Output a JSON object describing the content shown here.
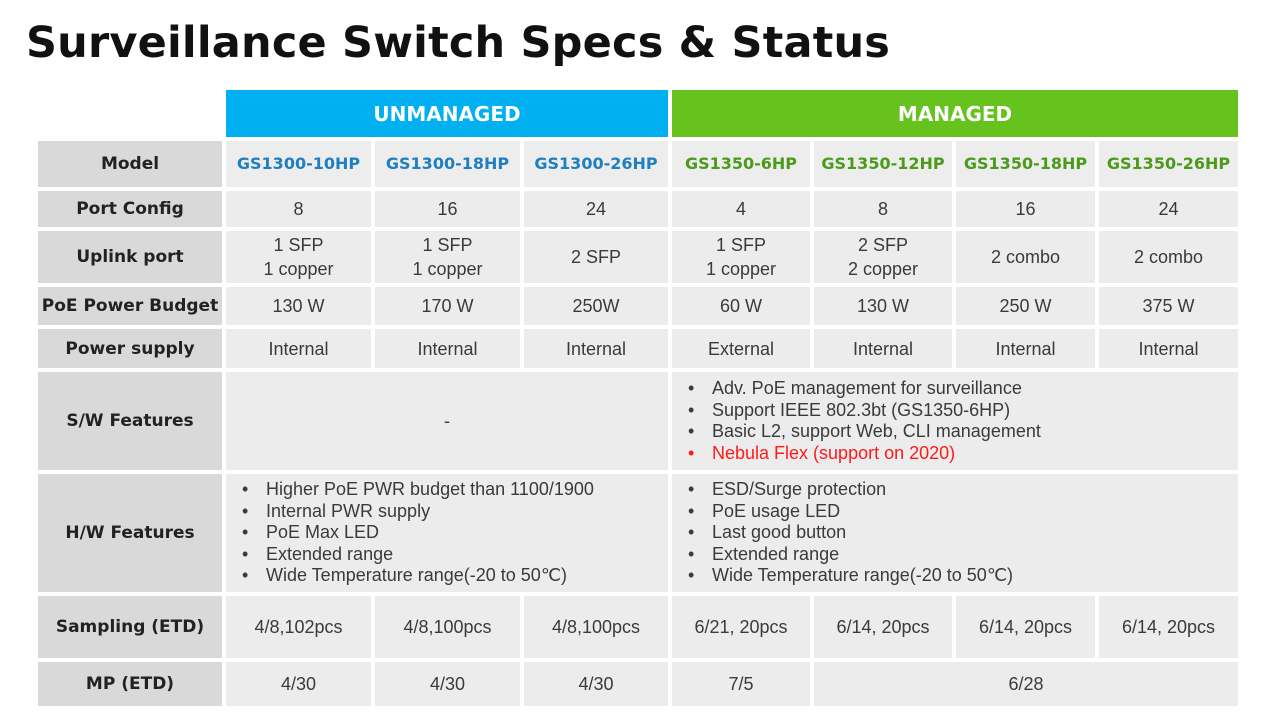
{
  "title": "Surveillance Switch Specs & Status",
  "groups": {
    "unmanaged": "UNMANAGED",
    "managed": "MANAGED"
  },
  "colors": {
    "unmanaged": "#00b0f0",
    "managed": "#66c31d",
    "highlight": "#ff1a1a"
  },
  "row_labels": {
    "model": "Model",
    "port_config": "Port Config",
    "uplink": "Uplink port",
    "poe_budget": "PoE Power Budget",
    "power_supply": "Power supply",
    "sw_features": "S/W Features",
    "hw_features": "H/W Features",
    "sampling": "Sampling (ETD)",
    "mp": "MP (ETD)"
  },
  "models": [
    "GS1300-10HP",
    "GS1300-18HP",
    "GS1300-26HP",
    "GS1350-6HP",
    "GS1350-12HP",
    "GS1350-18HP",
    "GS1350-26HP"
  ],
  "port_config": [
    "8",
    "16",
    "24",
    "4",
    "8",
    "16",
    "24"
  ],
  "uplink": [
    [
      "1 SFP",
      "1 copper"
    ],
    [
      "1 SFP",
      "1 copper"
    ],
    [
      "2 SFP"
    ],
    [
      "1 SFP",
      "1 copper"
    ],
    [
      "2 SFP",
      "2 copper"
    ],
    [
      "2 combo"
    ],
    [
      "2 combo"
    ]
  ],
  "poe_budget": [
    "130 W",
    "170 W",
    "250W",
    "60 W",
    "130 W",
    "250 W",
    "375 W"
  ],
  "power_supply": [
    "Internal",
    "Internal",
    "Internal",
    "External",
    "Internal",
    "Internal",
    "Internal"
  ],
  "sw_features": {
    "unmanaged": "-",
    "managed": [
      "Adv. PoE management for surveillance",
      "Support IEEE 802.3bt (GS1350-6HP)",
      "Basic L2, support Web, CLI management",
      "Nebula Flex (support on 2020)"
    ]
  },
  "hw_features": {
    "unmanaged": [
      "Higher PoE PWR budget than 1100/1900",
      "Internal PWR supply",
      "PoE Max LED",
      "Extended range",
      "Wide Temperature range(-20 to 50℃)"
    ],
    "managed": [
      "ESD/Surge protection",
      "PoE usage LED",
      "Last good button",
      "Extended range",
      "Wide Temperature range(-20 to 50℃)"
    ]
  },
  "sampling": [
    "4/8,102pcs",
    "4/8,100pcs",
    "4/8,100pcs",
    "6/21, 20pcs",
    "6/14, 20pcs",
    "6/14, 20pcs",
    "6/14, 20pcs"
  ],
  "mp": {
    "gs1300_10hp": "4/30",
    "gs1300_18hp": "4/30",
    "gs1300_26hp": "4/30",
    "gs1350_6hp": "7/5",
    "gs1350_rest": "6/28"
  }
}
